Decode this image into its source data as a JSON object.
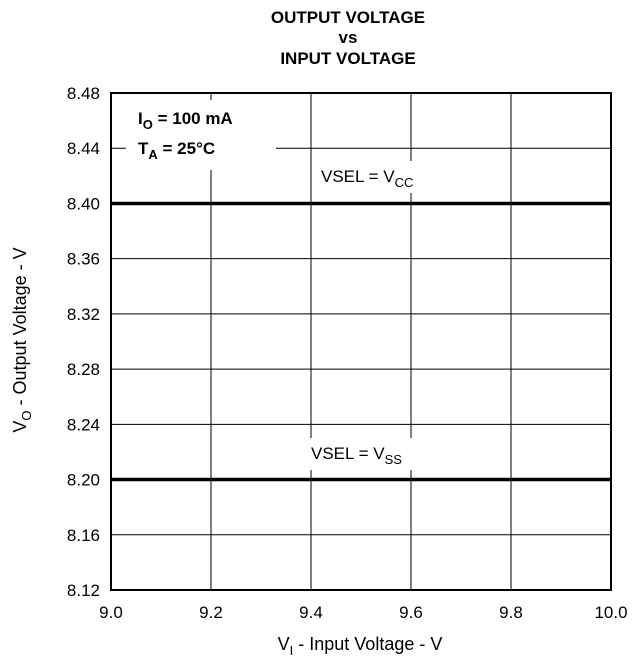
{
  "chart_data": {
    "type": "line",
    "title": [
      "OUTPUT VOLTAGE",
      "vs",
      "INPUT VOLTAGE"
    ],
    "xlabel": {
      "main": "V",
      "sub": "I",
      "rest": " - Input Voltage - V"
    },
    "ylabel": {
      "main": "V",
      "sub": "O",
      "rest": " - Output Voltage - V"
    },
    "xlim": [
      9.0,
      10.0
    ],
    "ylim": [
      8.12,
      8.48
    ],
    "x_ticks": [
      "9.0",
      "9.2",
      "9.4",
      "9.6",
      "9.8",
      "10.0"
    ],
    "y_ticks": [
      "8.48",
      "8.44",
      "8.40",
      "8.36",
      "8.32",
      "8.28",
      "8.24",
      "8.20",
      "8.16",
      "8.12"
    ],
    "grid": true,
    "conditions": [
      {
        "main": "I",
        "sub": "O",
        "rest": " = 100 mA"
      },
      {
        "main": "T",
        "sub": "A",
        "rest": " = 25°C"
      }
    ],
    "series": [
      {
        "name": "VSEL = VCC",
        "label_main": "VSEL = V",
        "label_sub": "CC",
        "x": [
          9.0,
          10.0
        ],
        "y": [
          8.4,
          8.4
        ]
      },
      {
        "name": "VSEL = VSS",
        "label_main": "VSEL = V",
        "label_sub": "SS",
        "x": [
          9.0,
          10.0
        ],
        "y": [
          8.2,
          8.2
        ]
      }
    ]
  }
}
